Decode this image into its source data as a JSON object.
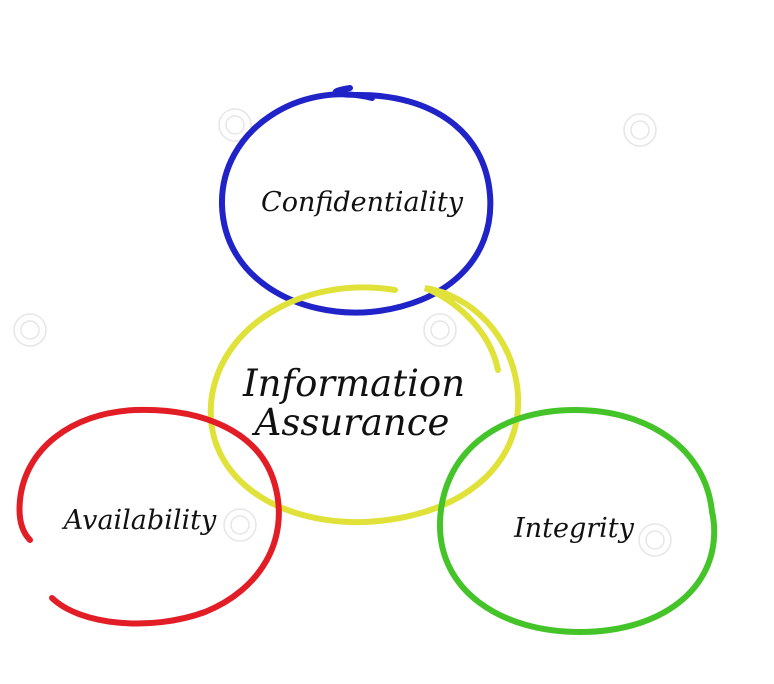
{
  "diagram": {
    "center": {
      "label_line1": "Information",
      "label_line2": "Assurance",
      "color": "#e0e23a"
    },
    "nodes": [
      {
        "id": "confidentiality",
        "label": "Confidentiality",
        "color": "#2024c8"
      },
      {
        "id": "availability",
        "label": "Availability",
        "color": "#e21d26"
      },
      {
        "id": "integrity",
        "label": "Integrity",
        "color": "#45c42a"
      }
    ]
  }
}
